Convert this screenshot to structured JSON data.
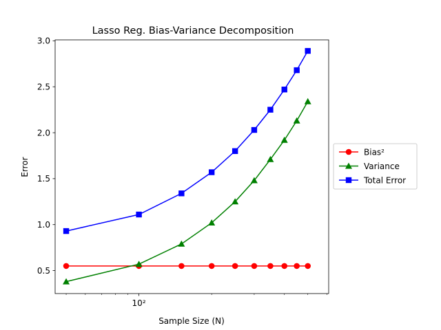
{
  "chart_data": {
    "type": "line",
    "title": "Lasso Reg. Bias-Variance Decomposition",
    "xlabel": "Sample Size (N)",
    "ylabel": "Error",
    "x_scale": "log",
    "xlim": [
      45,
      610
    ],
    "ylim": [
      0.25,
      3.01
    ],
    "x_ticks": [
      {
        "value": 100,
        "label": "10²"
      }
    ],
    "y_ticks": [
      {
        "value": 0.5,
        "label": "0.5"
      },
      {
        "value": 1.0,
        "label": "1.0"
      },
      {
        "value": 1.5,
        "label": "1.5"
      },
      {
        "value": 2.0,
        "label": "2.0"
      },
      {
        "value": 2.5,
        "label": "2.5"
      },
      {
        "value": 3.0,
        "label": "3.0"
      }
    ],
    "grid": false,
    "legend_position": "right-outside",
    "x": [
      50,
      100,
      150,
      200,
      250,
      300,
      350,
      400,
      450,
      500
    ],
    "series": [
      {
        "name": "Bias²",
        "color": "#ff0000",
        "marker": "circle",
        "values": [
          0.55,
          0.55,
          0.55,
          0.55,
          0.55,
          0.55,
          0.55,
          0.55,
          0.55,
          0.55
        ]
      },
      {
        "name": "Variance",
        "color": "#008000",
        "marker": "triangle",
        "values": [
          0.38,
          0.57,
          0.79,
          1.02,
          1.25,
          1.48,
          1.71,
          1.92,
          2.13,
          2.34
        ]
      },
      {
        "name": "Total Error",
        "color": "#0000ff",
        "marker": "square",
        "values": [
          0.93,
          1.11,
          1.34,
          1.57,
          1.8,
          2.03,
          2.25,
          2.47,
          2.68,
          2.89
        ]
      }
    ]
  }
}
